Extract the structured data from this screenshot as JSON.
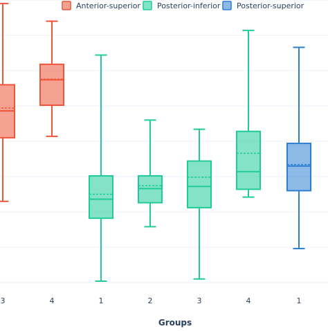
{
  "chart_data": {
    "type": "box",
    "title": "",
    "xlabel": "Groups",
    "ylabel": "",
    "grid": true,
    "legend_position": "top",
    "ylim": [
      0,
      400
    ],
    "series": [
      {
        "name": "Anterior-superior",
        "color": "#ef553b",
        "boxes": [
          {
            "category": "3",
            "min": 115,
            "q1": 205,
            "median": 243,
            "mean": 247,
            "q3": 280,
            "max": 395
          },
          {
            "category": "4",
            "min": 207,
            "q1": 251,
            "median": 287,
            "mean": 288,
            "q3": 309,
            "max": 370
          }
        ]
      },
      {
        "name": "Posterior-inferior",
        "color": "#1fcc99",
        "boxes": [
          {
            "category": "1",
            "min": 2,
            "q1": 91,
            "median": 118,
            "mean": 125,
            "q3": 151,
            "max": 322
          },
          {
            "category": "2",
            "min": 79,
            "q1": 113,
            "median": 133,
            "mean": 137,
            "q3": 151,
            "max": 230
          },
          {
            "category": "3",
            "min": 5,
            "q1": 106,
            "median": 136,
            "mean": 149,
            "q3": 172,
            "max": 217
          },
          {
            "category": "4",
            "min": 121,
            "q1": 132,
            "median": 157,
            "mean": 183,
            "q3": 214,
            "max": 357
          }
        ]
      },
      {
        "name": "Posterior-superior",
        "color": "#2f7fd1",
        "boxes": [
          {
            "category": "1",
            "min": 48,
            "q1": 130,
            "median": 165,
            "mean": 167,
            "q3": 197,
            "max": 333
          }
        ]
      }
    ],
    "x_ticks": [
      "3",
      "4",
      "1",
      "2",
      "3",
      "4",
      "1"
    ]
  },
  "legend": {
    "items": [
      "Anterior-superior",
      "Posterior-inferior",
      "Posterior-superior"
    ]
  },
  "axis": {
    "x_title": "Groups"
  }
}
